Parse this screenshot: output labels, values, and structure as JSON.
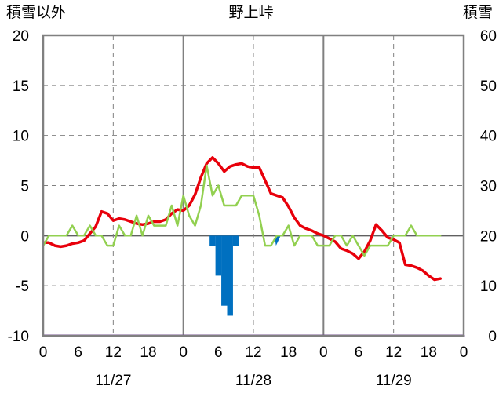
{
  "chart_data": {
    "type": "line",
    "title": "野上峠",
    "left_axis_title": "積雪以外",
    "right_axis_title": "積雪",
    "y_left": {
      "min": -10,
      "max": 20,
      "ticks": [
        20,
        15,
        10,
        5,
        0,
        -5,
        -10
      ]
    },
    "y_right": {
      "min": 0,
      "max": 60,
      "ticks": [
        60,
        50,
        40,
        30,
        20,
        10,
        0
      ]
    },
    "x": {
      "min": 0,
      "max": 72,
      "tick_hours": [
        0,
        6,
        12,
        18,
        24,
        30,
        36,
        42,
        48,
        54,
        60,
        66,
        72
      ],
      "tick_labels": [
        "0",
        "6",
        "12",
        "18",
        "0",
        "6",
        "12",
        "18",
        "0",
        "6",
        "12",
        "18",
        "0"
      ]
    },
    "day_labels": [
      {
        "text": "11/27",
        "hour": 12
      },
      {
        "text": "11/28",
        "hour": 36
      },
      {
        "text": "11/29",
        "hour": 60
      }
    ],
    "day_separator_hours": [
      24,
      48
    ],
    "dashed_grid_hours": [
      12,
      36,
      60
    ],
    "grid": true,
    "colors": {
      "temperature": "#e8000b",
      "wind": "#92d050",
      "precip": "#0070c0",
      "snow": "#7030a0",
      "axes": "#808080"
    },
    "series": [
      {
        "key": "temperature",
        "color": "#e8000b",
        "axis": "left",
        "values": [
          [
            0,
            -0.7
          ],
          [
            1,
            -0.7
          ],
          [
            2,
            -1.0
          ],
          [
            3,
            -1.1
          ],
          [
            4,
            -1.0
          ],
          [
            5,
            -0.8
          ],
          [
            6,
            -0.7
          ],
          [
            7,
            -0.5
          ],
          [
            8,
            0.2
          ],
          [
            9,
            0.9
          ],
          [
            10,
            2.4
          ],
          [
            11,
            2.2
          ],
          [
            12,
            1.5
          ],
          [
            13,
            1.7
          ],
          [
            14,
            1.6
          ],
          [
            15,
            1.4
          ],
          [
            16,
            1.2
          ],
          [
            17,
            1.1
          ],
          [
            18,
            1.2
          ],
          [
            19,
            1.4
          ],
          [
            20,
            1.4
          ],
          [
            21,
            1.6
          ],
          [
            22,
            2.2
          ],
          [
            23,
            2.6
          ],
          [
            24,
            2.5
          ],
          [
            25,
            3.0
          ],
          [
            26,
            4.1
          ],
          [
            27,
            5.8
          ],
          [
            28,
            7.2
          ],
          [
            29,
            7.8
          ],
          [
            30,
            7.2
          ],
          [
            31,
            6.4
          ],
          [
            32,
            6.9
          ],
          [
            33,
            7.1
          ],
          [
            34,
            7.2
          ],
          [
            35,
            6.9
          ],
          [
            36,
            6.8
          ],
          [
            37,
            6.8
          ],
          [
            38,
            5.5
          ],
          [
            39,
            4.2
          ],
          [
            40,
            4.0
          ],
          [
            41,
            3.8
          ],
          [
            42,
            2.9
          ],
          [
            43,
            1.8
          ],
          [
            44,
            1.0
          ],
          [
            45,
            0.7
          ],
          [
            46,
            0.5
          ],
          [
            47,
            0.2
          ],
          [
            48,
            0.0
          ],
          [
            49,
            -0.3
          ],
          [
            50,
            -0.6
          ],
          [
            51,
            -1.3
          ],
          [
            52,
            -1.5
          ],
          [
            53,
            -1.8
          ],
          [
            54,
            -2.3
          ],
          [
            55,
            -1.6
          ],
          [
            56,
            -0.5
          ],
          [
            57,
            1.1
          ],
          [
            58,
            0.5
          ],
          [
            59,
            -0.2
          ],
          [
            60,
            -0.4
          ],
          [
            61,
            -0.7
          ],
          [
            62,
            -2.9
          ],
          [
            63,
            -3.0
          ],
          [
            64,
            -3.2
          ],
          [
            65,
            -3.5
          ],
          [
            66,
            -4.0
          ],
          [
            67,
            -4.4
          ],
          [
            68,
            -4.3
          ]
        ]
      },
      {
        "key": "wind",
        "color": "#92d050",
        "axis": "left",
        "values": [
          [
            0,
            -1.0
          ],
          [
            1,
            0.0
          ],
          [
            2,
            0.0
          ],
          [
            3,
            0.0
          ],
          [
            4,
            0.0
          ],
          [
            5,
            1.0
          ],
          [
            6,
            0.0
          ],
          [
            7,
            0.0
          ],
          [
            8,
            1.0
          ],
          [
            9,
            0.0
          ],
          [
            10,
            0.0
          ],
          [
            11,
            -1.0
          ],
          [
            12,
            -1.0
          ],
          [
            13,
            1.0
          ],
          [
            14,
            0.0
          ],
          [
            15,
            0.0
          ],
          [
            16,
            2.0
          ],
          [
            17,
            0.0
          ],
          [
            18,
            2.0
          ],
          [
            19,
            1.0
          ],
          [
            20,
            1.0
          ],
          [
            21,
            1.0
          ],
          [
            22,
            3.0
          ],
          [
            23,
            1.0
          ],
          [
            24,
            4.0
          ],
          [
            25,
            2.0
          ],
          [
            26,
            1.0
          ],
          [
            27,
            3.0
          ],
          [
            28,
            7.0
          ],
          [
            29,
            4.0
          ],
          [
            30,
            5.0
          ],
          [
            31,
            3.0
          ],
          [
            32,
            3.0
          ],
          [
            33,
            3.0
          ],
          [
            34,
            4.0
          ],
          [
            35,
            4.0
          ],
          [
            36,
            4.0
          ],
          [
            37,
            2.0
          ],
          [
            38,
            -1.0
          ],
          [
            39,
            -1.0
          ],
          [
            40,
            0.0
          ],
          [
            41,
            0.0
          ],
          [
            42,
            1.0
          ],
          [
            43,
            -1.0
          ],
          [
            44,
            0.0
          ],
          [
            45,
            0.0
          ],
          [
            46,
            0.0
          ],
          [
            47,
            -1.0
          ],
          [
            48,
            -1.0
          ],
          [
            49,
            -1.0
          ],
          [
            50,
            0.0
          ],
          [
            51,
            0.0
          ],
          [
            52,
            -1.0
          ],
          [
            53,
            0.0
          ],
          [
            54,
            -1.0
          ],
          [
            55,
            -2.0
          ],
          [
            56,
            -1.0
          ],
          [
            57,
            -1.0
          ],
          [
            58,
            -1.0
          ],
          [
            59,
            -1.0
          ],
          [
            60,
            0.0
          ],
          [
            61,
            0.0
          ],
          [
            62,
            0.0
          ],
          [
            63,
            1.0
          ],
          [
            64,
            0.0
          ],
          [
            65,
            0.0
          ],
          [
            66,
            0.0
          ],
          [
            67,
            0.0
          ],
          [
            68,
            0.0
          ]
        ]
      },
      {
        "key": "snow",
        "color": "#7030a0",
        "axis": "right",
        "values": [
          [
            0,
            0
          ],
          [
            72,
            0
          ]
        ]
      }
    ],
    "bars": {
      "key": "precip",
      "color": "#0070c0",
      "axis": "left",
      "baseline": 0,
      "values": [
        [
          29,
          -1.0
        ],
        [
          30,
          -4.0
        ],
        [
          31,
          -7.0
        ],
        [
          32,
          -8.0
        ],
        [
          33,
          -1.0
        ]
      ]
    },
    "small_marker": {
      "hour": 40,
      "value": -1.0,
      "color": "#0070c0"
    }
  }
}
